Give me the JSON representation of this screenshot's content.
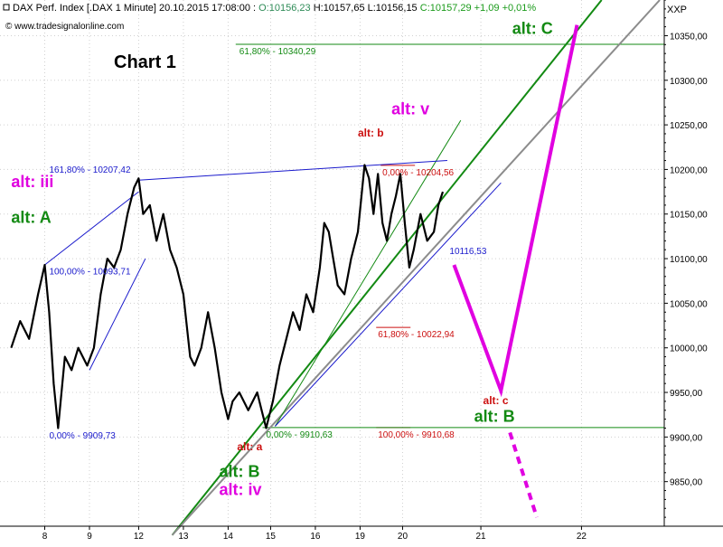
{
  "header": {
    "symbol_line": "DAX Perf. Index [.DAX  1 Minute] 20.10.2015 17:08:00 : ",
    "ohlc_parts": [
      {
        "text": "O:10156,23 ",
        "color": "#2e8b57"
      },
      {
        "text": "H:10157,65 ",
        "color": "#000000"
      },
      {
        "text": "L:10156,15 ",
        "color": "#000000"
      },
      {
        "text": "C:10157,29 +1,09 +0,01%",
        "color": "#1a9a1a"
      }
    ],
    "copyright": "© www.tradesignalonline.com",
    "axis_symbol": "XXP"
  },
  "chart_title": "Chart 1",
  "colors": {
    "price": "#000000",
    "blue": "#1a1acc",
    "green": "#138a13",
    "red": "#cc1010",
    "magenta": "#e000e0",
    "gray": "#8c8c8c",
    "grid": "#d0d0d0"
  },
  "chart_data": {
    "type": "line",
    "title": "",
    "instrument": "DAX Perf. Index [.DAX 1 Minute]",
    "ylim": [
      9800,
      10390
    ],
    "y_ticks": [
      9850,
      9900,
      9950,
      10000,
      10050,
      10100,
      10150,
      10200,
      10250,
      10300,
      10350
    ],
    "y_tick_labels": [
      "9850,00",
      "9900,00",
      "9950,00",
      "10000,00",
      "10050,00",
      "10100,00",
      "10150,00",
      "10200,00",
      "10250,00",
      "10300,00",
      "10350,00"
    ],
    "x_ticks": [
      "8",
      "9",
      "12",
      "13",
      "14",
      "15",
      "16",
      "19",
      "20",
      "21",
      "22"
    ],
    "x_positions": [
      0.75,
      1.75,
      2.85,
      3.85,
      4.85,
      5.8,
      6.8,
      7.8,
      8.75,
      10.5,
      12.75
    ],
    "x_range": [
      -0.25,
      14.6
    ],
    "price_path": [
      [
        0.0,
        10000
      ],
      [
        0.2,
        10030
      ],
      [
        0.4,
        10010
      ],
      [
        0.6,
        10060
      ],
      [
        0.75,
        10093
      ],
      [
        0.85,
        10040
      ],
      [
        0.95,
        9960
      ],
      [
        1.05,
        9910
      ],
      [
        1.2,
        9990
      ],
      [
        1.35,
        9975
      ],
      [
        1.5,
        10000
      ],
      [
        1.7,
        9980
      ],
      [
        1.85,
        10000
      ],
      [
        2.0,
        10060
      ],
      [
        2.15,
        10100
      ],
      [
        2.3,
        10090
      ],
      [
        2.45,
        10110
      ],
      [
        2.6,
        10150
      ],
      [
        2.75,
        10180
      ],
      [
        2.85,
        10190
      ],
      [
        2.95,
        10150
      ],
      [
        3.1,
        10160
      ],
      [
        3.25,
        10120
      ],
      [
        3.4,
        10150
      ],
      [
        3.55,
        10110
      ],
      [
        3.7,
        10090
      ],
      [
        3.85,
        10060
      ],
      [
        4.0,
        9990
      ],
      [
        4.1,
        9980
      ],
      [
        4.25,
        10000
      ],
      [
        4.4,
        10040
      ],
      [
        4.55,
        10000
      ],
      [
        4.7,
        9950
      ],
      [
        4.85,
        9920
      ],
      [
        4.95,
        9940
      ],
      [
        5.1,
        9950
      ],
      [
        5.3,
        9930
      ],
      [
        5.5,
        9950
      ],
      [
        5.6,
        9930
      ],
      [
        5.7,
        9910
      ],
      [
        5.85,
        9940
      ],
      [
        6.0,
        9980
      ],
      [
        6.15,
        10010
      ],
      [
        6.3,
        10040
      ],
      [
        6.45,
        10020
      ],
      [
        6.6,
        10060
      ],
      [
        6.75,
        10040
      ],
      [
        6.9,
        10090
      ],
      [
        7.0,
        10140
      ],
      [
        7.1,
        10130
      ],
      [
        7.2,
        10100
      ],
      [
        7.3,
        10070
      ],
      [
        7.45,
        10060
      ],
      [
        7.6,
        10100
      ],
      [
        7.75,
        10130
      ],
      [
        7.9,
        10205
      ],
      [
        8.0,
        10190
      ],
      [
        8.1,
        10150
      ],
      [
        8.2,
        10195
      ],
      [
        8.3,
        10140
      ],
      [
        8.4,
        10120
      ],
      [
        8.5,
        10150
      ],
      [
        8.6,
        10170
      ],
      [
        8.7,
        10195
      ],
      [
        8.8,
        10140
      ],
      [
        8.9,
        10090
      ],
      [
        9.0,
        10110
      ],
      [
        9.15,
        10150
      ],
      [
        9.3,
        10120
      ],
      [
        9.45,
        10130
      ],
      [
        9.55,
        10160
      ],
      [
        9.65,
        10175
      ]
    ],
    "fib_levels": [
      {
        "label": "61,80% - 10340,29",
        "color": "green",
        "y": 10340.29,
        "x_label": 5.1
      },
      {
        "label": "161,80% - 10207,42",
        "color": "blue",
        "y": 10207.42,
        "x_label": 0.85
      },
      {
        "label": "100,00% - 10093,71",
        "color": "blue",
        "y": 10093.71,
        "x_label": 0.85
      },
      {
        "label": "0,00% - 9909,73",
        "color": "blue",
        "y": 9909.73,
        "x_label": 0.85
      },
      {
        "label": "0,00% - 10204,56",
        "color": "red",
        "y": 10204.56,
        "x_label": 8.3
      },
      {
        "label": "61,80% - 10022,94",
        "color": "red",
        "y": 10022.94,
        "x_label": 8.2
      },
      {
        "label": "100,00% - 9910,68",
        "color": "red",
        "y": 9910.68,
        "x_label": 8.2
      },
      {
        "label": "0,00% - 9910,63",
        "color": "green",
        "y": 9910.63,
        "x_label": 5.7
      },
      {
        "label": "10116,53",
        "color": "blue",
        "y": 10116.53,
        "x_label": 9.8
      }
    ],
    "wave_labels": [
      {
        "text": "alt: iii",
        "color": "magenta",
        "x": 0.0,
        "y": 10180,
        "size": "big"
      },
      {
        "text": "alt: A",
        "color": "green",
        "x": 0.0,
        "y": 10140,
        "size": "big"
      },
      {
        "text": "alt: v",
        "color": "magenta",
        "x": 8.5,
        "y": 10262,
        "size": "big"
      },
      {
        "text": "alt: b",
        "color": "red",
        "x": 7.75,
        "y": 10237,
        "size": "small"
      },
      {
        "text": "alt: C",
        "color": "green",
        "x": 11.2,
        "y": 10352,
        "size": "big"
      },
      {
        "text": "alt: c",
        "color": "red",
        "x": 10.55,
        "y": 9937,
        "size": "small"
      },
      {
        "text": "alt: B",
        "color": "green",
        "x": 10.35,
        "y": 9917,
        "size": "big"
      },
      {
        "text": "alt: a",
        "color": "red",
        "x": 5.05,
        "y": 9885,
        "size": "small"
      },
      {
        "text": "alt: B",
        "color": "green",
        "x": 4.65,
        "y": 9855,
        "size": "big"
      },
      {
        "text": "alt: iv",
        "color": "magenta",
        "x": 4.65,
        "y": 9835,
        "size": "big"
      }
    ],
    "projection": {
      "solid": [
        [
          9.9,
          10093
        ],
        [
          10.95,
          9952
        ],
        [
          12.65,
          10362
        ]
      ],
      "dashed": [
        [
          11.15,
          9905
        ],
        [
          11.75,
          9810
        ]
      ]
    },
    "trend_lines": [
      {
        "color": "green",
        "from": [
          3.6,
          9790
        ],
        "to": [
          13.2,
          10390
        ]
      },
      {
        "color": "gray",
        "from": [
          3.6,
          9790
        ],
        "to": [
          14.5,
          10390
        ]
      },
      {
        "color": "green",
        "from": [
          5.9,
          9912
        ],
        "to": [
          10.05,
          10255
        ]
      },
      {
        "color": "blue",
        "from": [
          5.9,
          9912
        ],
        "to": [
          10.95,
          10185
        ]
      },
      {
        "color": "blue",
        "from": [
          2.85,
          10188
        ],
        "to": [
          9.75,
          10210
        ]
      },
      {
        "color": "blue",
        "from": [
          1.75,
          9975
        ],
        "to": [
          3.0,
          10100
        ]
      },
      {
        "color": "blue",
        "from": [
          0.75,
          10093
        ],
        "to": [
          2.85,
          10175
        ]
      }
    ]
  }
}
